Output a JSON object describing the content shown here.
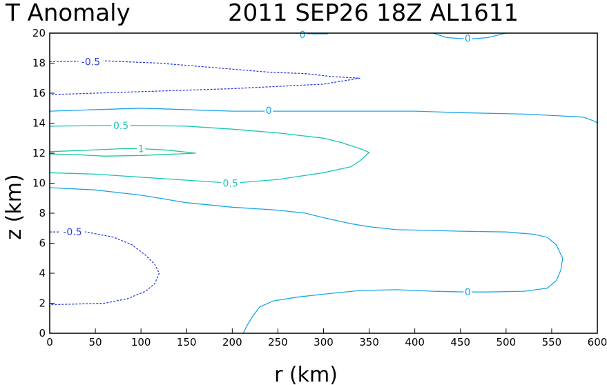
{
  "chart_data": {
    "type": "contour",
    "title_left": "T Anomaly",
    "title_right": "2011 SEP26 18Z  AL1611",
    "xlabel": "r (km)",
    "ylabel": "z (km)",
    "xlim": [
      0,
      600
    ],
    "ylim": [
      0,
      20
    ],
    "xticks": [
      0,
      50,
      100,
      150,
      200,
      250,
      300,
      350,
      400,
      450,
      500,
      550,
      600
    ],
    "yticks": [
      0,
      2,
      4,
      6,
      8,
      10,
      12,
      14,
      16,
      18,
      20
    ],
    "colors": {
      "zero": "#1aa5e6",
      "half": "#19c6b6",
      "one": "#1ec79a",
      "negative": "#2b3fd6"
    },
    "contours": [
      {
        "level": "0",
        "color_key": "zero",
        "dashed": false,
        "points": [
          [
            270,
            20
          ],
          [
            290,
            19.95
          ],
          [
            305,
            19.95
          ]
        ],
        "label_at": [
          277,
          19.9
        ]
      },
      {
        "level": "0",
        "color_key": "zero",
        "dashed": false,
        "points": [
          [
            420,
            20
          ],
          [
            435,
            19.7
          ],
          [
            460,
            19.6
          ],
          [
            480,
            19.7
          ],
          [
            500,
            20
          ]
        ],
        "label_at": [
          458,
          19.65
        ]
      },
      {
        "level": "0",
        "color_key": "zero",
        "dashed": false,
        "points": [
          [
            0,
            14.8
          ],
          [
            100,
            15.0
          ],
          [
            200,
            14.8
          ],
          [
            300,
            14.8
          ],
          [
            400,
            14.8
          ],
          [
            450,
            14.7
          ],
          [
            520,
            14.6
          ],
          [
            555,
            14.5
          ],
          [
            585,
            14.4
          ],
          [
            598,
            14.1
          ],
          [
            600,
            14.0
          ]
        ],
        "label_at": [
          240,
          14.85
        ]
      },
      {
        "level": "0",
        "color_key": "zero",
        "dashed": false,
        "points": [
          [
            0,
            9.7
          ],
          [
            50,
            9.55
          ],
          [
            100,
            9.2
          ],
          [
            150,
            8.7
          ],
          [
            200,
            8.4
          ],
          [
            250,
            8.2
          ],
          [
            280,
            8.0
          ],
          [
            300,
            7.7
          ],
          [
            330,
            7.3
          ],
          [
            350,
            7.1
          ],
          [
            380,
            6.9
          ],
          [
            420,
            6.85
          ],
          [
            450,
            6.8
          ],
          [
            500,
            6.75
          ],
          [
            530,
            6.6
          ],
          [
            545,
            6.4
          ],
          [
            555,
            5.9
          ],
          [
            562,
            5.0
          ],
          [
            560,
            4.2
          ],
          [
            555,
            3.5
          ],
          [
            545,
            3.0
          ],
          [
            520,
            2.8
          ],
          [
            480,
            2.75
          ],
          [
            455,
            2.75
          ],
          [
            420,
            2.8
          ],
          [
            380,
            2.9
          ],
          [
            340,
            2.85
          ],
          [
            300,
            2.6
          ],
          [
            270,
            2.4
          ],
          [
            245,
            2.15
          ],
          [
            230,
            1.75
          ],
          [
            222,
            1.1
          ],
          [
            216,
            0.5
          ],
          [
            212,
            0
          ]
        ],
        "label_at": [
          458,
          2.75
        ]
      },
      {
        "level": "0.5",
        "color_key": "half",
        "dashed": false,
        "points": [
          [
            0,
            13.8
          ],
          [
            80,
            13.85
          ],
          [
            150,
            13.8
          ],
          [
            200,
            13.6
          ],
          [
            250,
            13.35
          ],
          [
            300,
            13.0
          ],
          [
            320,
            12.7
          ],
          [
            340,
            12.3
          ],
          [
            350,
            12.05
          ],
          [
            340,
            11.5
          ],
          [
            330,
            11.1
          ],
          [
            300,
            10.7
          ],
          [
            250,
            10.25
          ],
          [
            200,
            10.0
          ],
          [
            150,
            10.2
          ],
          [
            100,
            10.4
          ],
          [
            50,
            10.6
          ],
          [
            0,
            10.7
          ]
        ],
        "label_at": [
          78,
          13.85
        ]
      },
      {
        "level": "0.5",
        "color_key": "half",
        "dashed": false,
        "label_only": true,
        "label_at": [
          198,
          10.0
        ]
      },
      {
        "level": "1",
        "color_key": "one",
        "dashed": false,
        "points": [
          [
            0,
            12.1
          ],
          [
            40,
            12.2
          ],
          [
            80,
            12.3
          ],
          [
            100,
            12.3
          ],
          [
            130,
            12.2
          ],
          [
            160,
            12.0
          ],
          [
            140,
            11.95
          ],
          [
            100,
            11.85
          ],
          [
            60,
            11.8
          ],
          [
            30,
            11.9
          ],
          [
            0,
            11.95
          ]
        ],
        "label_at": [
          100,
          12.3
        ]
      },
      {
        "level": "-0.5",
        "color_key": "negative",
        "dashed": true,
        "points": [
          [
            0,
            18.1
          ],
          [
            60,
            18.15
          ],
          [
            120,
            18.0
          ],
          [
            180,
            17.7
          ],
          [
            240,
            17.4
          ],
          [
            280,
            17.3
          ],
          [
            310,
            17.1
          ],
          [
            340,
            17.0
          ],
          [
            300,
            16.6
          ],
          [
            250,
            16.45
          ],
          [
            200,
            16.3
          ],
          [
            150,
            16.2
          ],
          [
            100,
            16.1
          ],
          [
            50,
            16.0
          ],
          [
            0,
            15.9
          ]
        ],
        "label_at": [
          45,
          18.1
        ]
      },
      {
        "level": "-0.5",
        "color_key": "negative",
        "dashed": true,
        "points": [
          [
            0,
            6.75
          ],
          [
            40,
            6.75
          ],
          [
            70,
            6.4
          ],
          [
            90,
            5.9
          ],
          [
            105,
            5.2
          ],
          [
            115,
            4.6
          ],
          [
            120,
            4.0
          ],
          [
            115,
            3.3
          ],
          [
            105,
            2.8
          ],
          [
            85,
            2.3
          ],
          [
            60,
            2.0
          ],
          [
            30,
            1.95
          ],
          [
            0,
            1.9
          ]
        ],
        "label_at": [
          25,
          6.75
        ]
      }
    ]
  }
}
